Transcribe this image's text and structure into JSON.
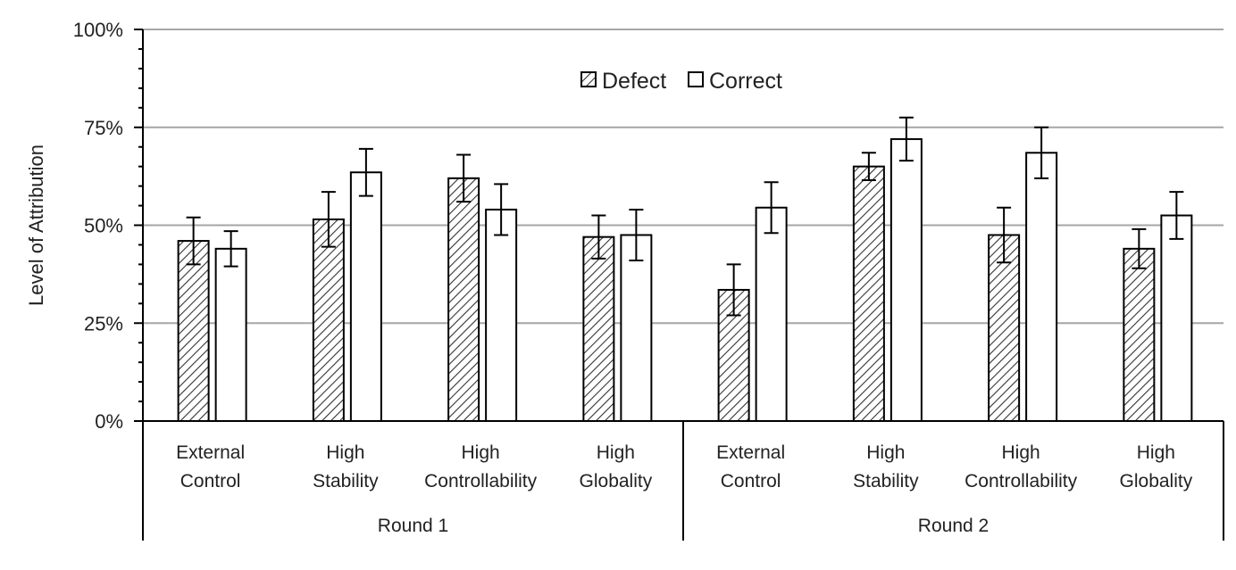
{
  "chart_data": {
    "type": "bar",
    "ylabel": "Level of Attribution",
    "ylim": [
      0,
      100
    ],
    "yticks": [
      "0%",
      "25%",
      "50%",
      "75%",
      "100%"
    ],
    "ytick_values": [
      0,
      25,
      50,
      75,
      100
    ],
    "grid": true,
    "legend_position": "top-center",
    "groups": [
      {
        "label": "Round 1",
        "categories": [
          [
            "External",
            "Control"
          ],
          [
            "High",
            "Stability"
          ],
          [
            "High",
            "Controllability"
          ],
          [
            "High",
            "Globality"
          ]
        ]
      },
      {
        "label": "Round 2",
        "categories": [
          [
            "External",
            "Control"
          ],
          [
            "High",
            "Stability"
          ],
          [
            "High",
            "Controllability"
          ],
          [
            "High",
            "Globality"
          ]
        ]
      }
    ],
    "series": [
      {
        "name": "Defect",
        "pattern": "hatched",
        "values": [
          46,
          51.5,
          62,
          47,
          33.5,
          65,
          47.5,
          44
        ],
        "errors": [
          6,
          7,
          6,
          5.5,
          6.5,
          3.5,
          7,
          5
        ]
      },
      {
        "name": "Correct",
        "pattern": "white",
        "values": [
          44,
          63.5,
          54,
          47.5,
          54.5,
          72,
          68.5,
          52.5
        ],
        "errors": [
          4.5,
          6,
          6.5,
          6.5,
          6.5,
          5.5,
          6.5,
          6
        ]
      }
    ],
    "colors": {
      "gridline": "#a6a6a6",
      "axis": "#000000",
      "bar_fill": "#ffffff",
      "hatch": "#333333"
    }
  }
}
